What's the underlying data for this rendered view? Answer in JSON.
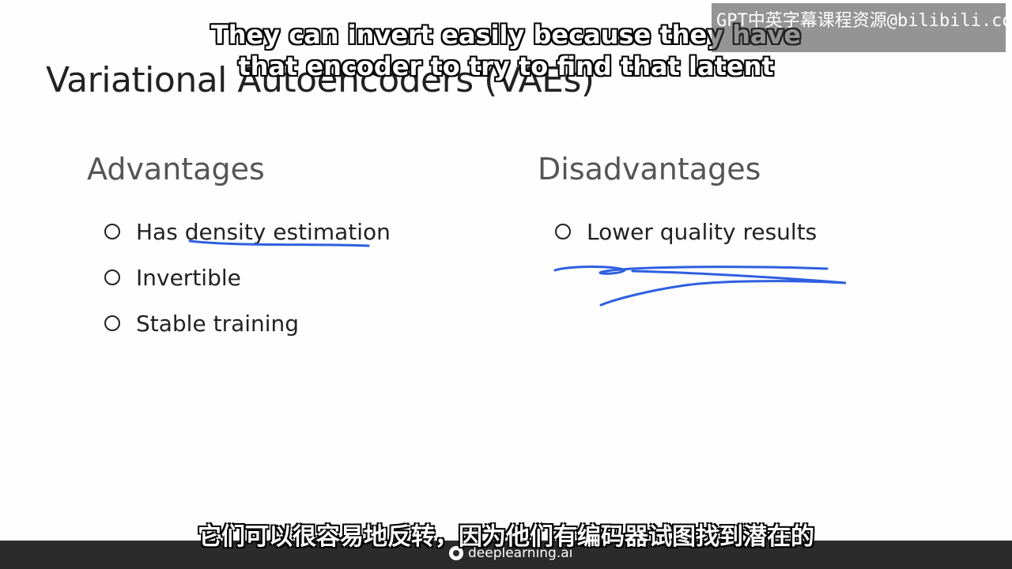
{
  "slide": {
    "title": "Variational Autoencoders (VAEs)",
    "advantages": {
      "heading": "Advantages",
      "items": [
        "Has density estimation",
        "Invertible",
        "Stable training"
      ]
    },
    "disadvantages": {
      "heading": "Disadvantages",
      "items": [
        "Lower quality results"
      ]
    }
  },
  "overlay": {
    "watermark": "GPT中英字幕课程资源@bilibili.com",
    "subtitle_en": "They can invert easily because they have that encoder to try to find that latent",
    "subtitle_zh": "它们可以很容易地反转，因为他们有编码器试图找到潜在的",
    "brand": "deeplearning.ai"
  },
  "colors": {
    "annotation": "#2f5fe0",
    "bar": "#2b2b2b"
  }
}
